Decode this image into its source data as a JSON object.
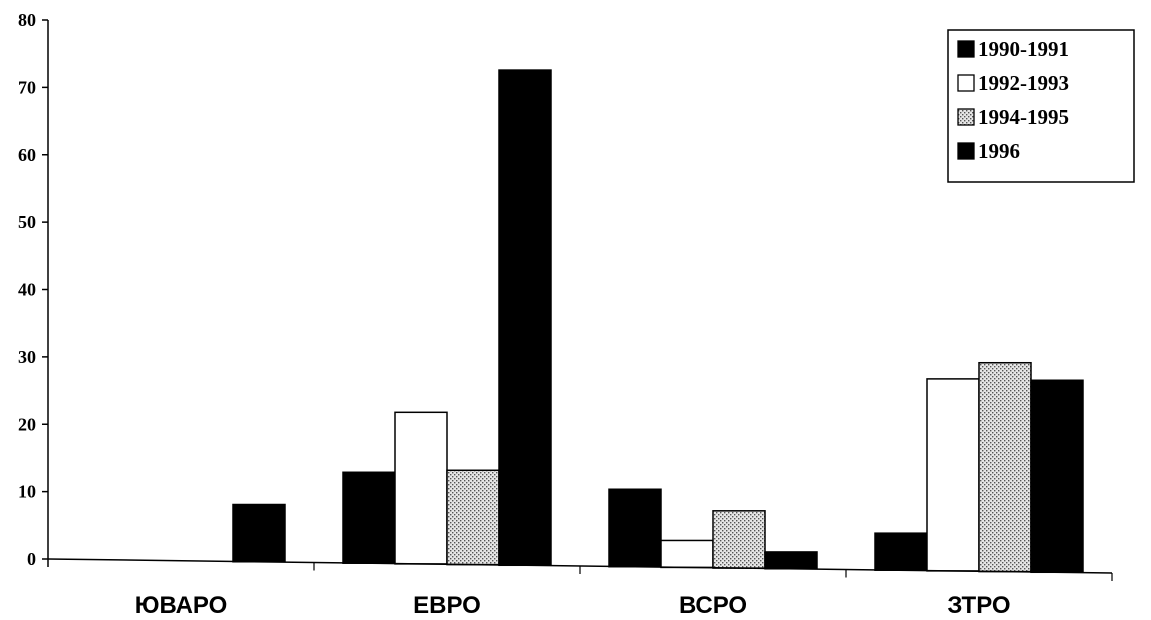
{
  "chart_data": {
    "type": "bar",
    "categories": [
      "ЮВАРО",
      "ЕВРО",
      "ВСРО",
      "ЗТРО"
    ],
    "series": [
      {
        "name": "1990-1991",
        "values": [
          0,
          13.5,
          11.5,
          5.5
        ],
        "color": "#000000",
        "pattern": "solid"
      },
      {
        "name": "1992-1993",
        "values": [
          0,
          22.5,
          4,
          28.5
        ],
        "color": "#ffffff",
        "pattern": "outline"
      },
      {
        "name": "1994-1995",
        "values": [
          0,
          14,
          8.5,
          31
        ],
        "color": "#d9d9d9",
        "pattern": "dotted"
      },
      {
        "name": "1996",
        "values": [
          8.5,
          73.5,
          2.5,
          28.5
        ],
        "color": "#000000",
        "pattern": "solid"
      }
    ],
    "ylim": [
      0,
      80
    ],
    "yticks": [
      "0",
      "10",
      "20",
      "30",
      "40",
      "50",
      "60",
      "70",
      "80"
    ],
    "title": "",
    "xlabel": "",
    "ylabel": "",
    "grid": false,
    "legend_position": "top-right"
  }
}
